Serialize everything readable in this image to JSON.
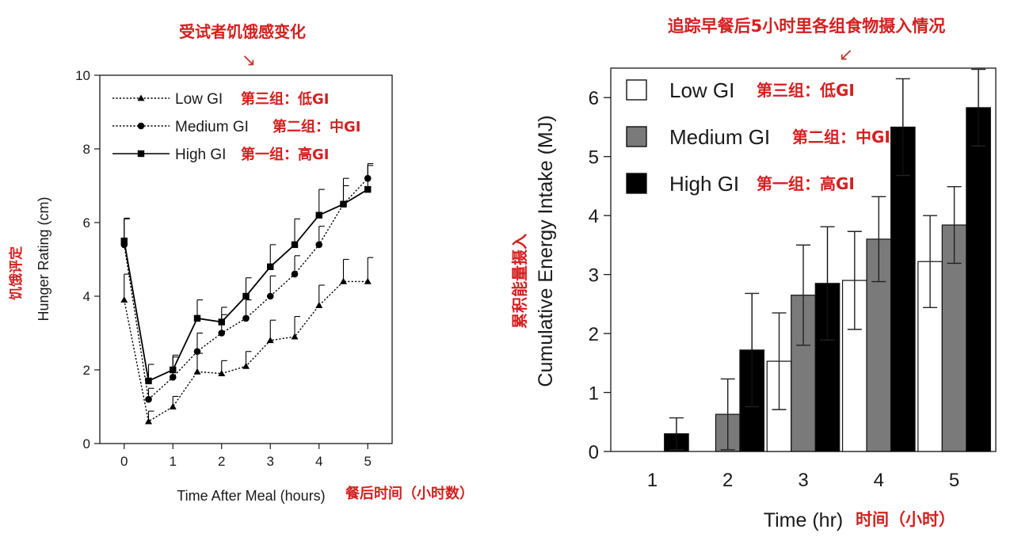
{
  "annotations": {
    "left_top": "受试者饥饿感变化",
    "right_top": "追踪早餐后5小时里各组食物摄入情况",
    "left_ylabel_cn": "饥饿评定",
    "left_xlabel_cn": "餐后时间（小时数）",
    "right_ylabel_cn": "累积能量摄入",
    "right_xlabel_cn": "时间（小时）",
    "arrow_left": "↘",
    "arrow_right": "↙"
  },
  "chart_data": [
    {
      "type": "line",
      "title": "",
      "xlabel": "Time After Meal (hours)",
      "ylabel": "Hunger Rating (cm)",
      "xlim": [
        -0.5,
        5.5
      ],
      "ylim": [
        0,
        10
      ],
      "xticks": [
        0,
        1,
        2,
        3,
        4,
        5
      ],
      "yticks": [
        0,
        2,
        4,
        6,
        8,
        10
      ],
      "grid": false,
      "legend_position": "top-left",
      "x": [
        0,
        0.5,
        1,
        1.5,
        2,
        2.5,
        3,
        3.5,
        4,
        4.5,
        5
      ],
      "series": [
        {
          "name": "Low  GI",
          "name_cn": "第三组：低GI",
          "marker": "triangle",
          "line": "dotted",
          "values": [
            3.9,
            0.6,
            1.0,
            1.95,
            1.9,
            2.1,
            2.8,
            2.9,
            3.75,
            4.4,
            4.4
          ],
          "error": [
            0.7,
            0.28,
            0.28,
            0.5,
            0.35,
            0.4,
            0.55,
            0.55,
            0.55,
            0.6,
            0.65
          ]
        },
        {
          "name": "Medium  GI",
          "name_cn": "第二组：中GI",
          "marker": "circle",
          "line": "dotted",
          "values": [
            5.4,
            1.2,
            1.8,
            2.5,
            3.0,
            3.4,
            4.0,
            4.6,
            5.4,
            6.5,
            7.2
          ],
          "error": [
            0.7,
            0.3,
            0.55,
            0.5,
            0.5,
            0.5,
            0.55,
            0.5,
            0.5,
            0.5,
            0.35
          ]
        },
        {
          "name": "High  GI",
          "name_cn": "第一组：高GI",
          "marker": "square",
          "line": "solid",
          "values": [
            5.5,
            1.7,
            2.0,
            3.4,
            3.3,
            4.0,
            4.8,
            5.4,
            6.2,
            6.5,
            6.9
          ],
          "error": [
            0.62,
            0.45,
            0.4,
            0.5,
            0.4,
            0.5,
            0.6,
            0.7,
            0.7,
            0.7,
            0.7
          ]
        }
      ]
    },
    {
      "type": "bar",
      "title": "",
      "xlabel": "Time (hr)",
      "ylabel": "Cumulative Energy Intake (MJ)",
      "categories": [
        "1",
        "2",
        "3",
        "4",
        "5"
      ],
      "ylim": [
        0,
        6.5
      ],
      "yticks": [
        0,
        1,
        2,
        3,
        4,
        5,
        6
      ],
      "grid": false,
      "legend_position": "top-left",
      "series": [
        {
          "name": "Low  GI",
          "name_cn": "第三组：低GI",
          "color": "#ffffff",
          "values": [
            0.0,
            0.0,
            1.53,
            2.9,
            3.22
          ],
          "error": [
            0,
            0,
            0.82,
            0.83,
            0.78
          ]
        },
        {
          "name": "Medium  GI",
          "name_cn": "第二组：中GI",
          "color": "#7a7a7a",
          "values": [
            0.0,
            0.63,
            2.65,
            3.6,
            3.84
          ],
          "error": [
            0,
            0.6,
            0.85,
            0.72,
            0.65
          ]
        },
        {
          "name": "High  GI",
          "name_cn": "第一组：高GI",
          "color": "#000000",
          "values": [
            0.3,
            1.72,
            2.85,
            5.5,
            5.83
          ],
          "error": [
            0.27,
            0.96,
            0.96,
            0.82,
            0.65
          ]
        }
      ]
    }
  ]
}
